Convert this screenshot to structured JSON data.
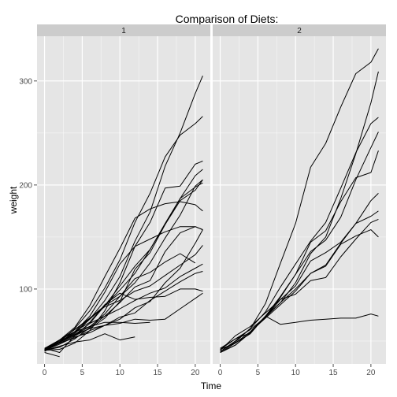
{
  "chart_data": {
    "type": "line",
    "title": "Comparison of Diets:",
    "xlabel": "Time",
    "ylabel": "weight",
    "xlim": [
      -1,
      22
    ],
    "ylim": [
      28,
      343
    ],
    "x_ticks": [
      0,
      5,
      10,
      15,
      20
    ],
    "y_ticks": [
      100,
      200,
      300
    ],
    "grid": true,
    "legend": "none",
    "panel_background": "#e5e5e5",
    "strip_background": "#cccccc",
    "gridline_color": "#ffffff",
    "line_color": "#000000",
    "panels": [
      {
        "label": "1",
        "series": [
          {
            "x": [
              0,
              2,
              4,
              6,
              8,
              10,
              12,
              14,
              16,
              18,
              20,
              21
            ],
            "y": [
              42,
              51,
              59,
              64,
              76,
              93,
              106,
              125,
              149,
              171,
              199,
              205
            ]
          },
          {
            "x": [
              0,
              2,
              4,
              6,
              8,
              10,
              12,
              14,
              16,
              18,
              20,
              21
            ],
            "y": [
              40,
              49,
              58,
              72,
              84,
              103,
              122,
              138,
              162,
              187,
              209,
              215
            ]
          },
          {
            "x": [
              0,
              2,
              4,
              6,
              8,
              10,
              12,
              14,
              16,
              18,
              20,
              21
            ],
            "y": [
              43,
              39,
              55,
              67,
              84,
              99,
              115,
              138,
              163,
              187,
              198,
              202
            ]
          },
          {
            "x": [
              0,
              2,
              4,
              6,
              8,
              10,
              12,
              14,
              16,
              18,
              20,
              21
            ],
            "y": [
              42,
              49,
              56,
              67,
              74,
              87,
              102,
              108,
              136,
              154,
              160,
              157
            ]
          },
          {
            "x": [
              0,
              2,
              4,
              6,
              8,
              10,
              12,
              14,
              16,
              18,
              20,
              21
            ],
            "y": [
              41,
              42,
              48,
              60,
              79,
              106,
              141,
              164,
              197,
              199,
              220,
              223
            ]
          },
          {
            "x": [
              0,
              2,
              4,
              6,
              8,
              10,
              12,
              14,
              16,
              18,
              20,
              21
            ],
            "y": [
              41,
              49,
              59,
              74,
              97,
              124,
              141,
              148,
              155,
              160,
              160,
              157
            ]
          },
          {
            "x": [
              0,
              2,
              4,
              6,
              8,
              10,
              12,
              14,
              16,
              18,
              20,
              21
            ],
            "y": [
              41,
              49,
              57,
              71,
              89,
              112,
              146,
              174,
              218,
              250,
              288,
              305
            ]
          },
          {
            "x": [
              0,
              2,
              4,
              6,
              8,
              10,
              12,
              14,
              16,
              18,
              20
            ],
            "y": [
              42,
              50,
              61,
              71,
              84,
              93,
              110,
              116,
              126,
              134,
              125
            ]
          },
          {
            "x": [
              0,
              2,
              4,
              6,
              8,
              10,
              12,
              14,
              16,
              18,
              20,
              21
            ],
            "y": [
              42,
              51,
              59,
              68,
              85,
              96,
              90,
              92,
              93,
              100,
              100,
              98
            ]
          },
          {
            "x": [
              0,
              2,
              4,
              6,
              8,
              10,
              12,
              14,
              16,
              18,
              20,
              21
            ],
            "y": [
              41,
              44,
              52,
              63,
              74,
              81,
              89,
              96,
              101,
              112,
              120,
              124
            ]
          },
          {
            "x": [
              0,
              2,
              4,
              6,
              8,
              10,
              12,
              14,
              16,
              18,
              20,
              21
            ],
            "y": [
              43,
              51,
              63,
              84,
              112,
              139,
              168,
              177,
              182,
              184,
              181,
              175
            ]
          },
          {
            "x": [
              0,
              2,
              4,
              6,
              8,
              10,
              12,
              14,
              16,
              18,
              20,
              21
            ],
            "y": [
              41,
              49,
              56,
              62,
              72,
              88,
              119,
              135,
              162,
              185,
              195,
              205
            ]
          },
          {
            "x": [
              0,
              2,
              4,
              6,
              8,
              10,
              12,
              14,
              16,
              18,
              20,
              21
            ],
            "y": [
              41,
              48,
              53,
              60,
              65,
              67,
              71,
              70,
              71,
              81,
              91,
              96
            ]
          },
          {
            "x": [
              0,
              2,
              4,
              6,
              8,
              10,
              12,
              14,
              16,
              18,
              20,
              21
            ],
            "y": [
              41,
              49,
              62,
              79,
              101,
              128,
              164,
              192,
              227,
              248,
              259,
              266
            ]
          },
          {
            "x": [
              0,
              2,
              4,
              6,
              8,
              10,
              12,
              14
            ],
            "y": [
              41,
              49,
              56,
              64,
              68,
              68,
              67,
              68
            ]
          },
          {
            "x": [
              0,
              2,
              4,
              6,
              8,
              10,
              12
            ],
            "y": [
              41,
              45,
              49,
              51,
              57,
              51,
              54
            ]
          },
          {
            "x": [
              0,
              2,
              4,
              6,
              8,
              10,
              12,
              14,
              16,
              18,
              20,
              21
            ],
            "y": [
              42,
              51,
              61,
              72,
              83,
              89,
              98,
              103,
              113,
              123,
              133,
              142
            ]
          },
          {
            "x": [
              0,
              2
            ],
            "y": [
              39,
              35
            ]
          },
          {
            "x": [
              0,
              2,
              4,
              6,
              8,
              10,
              12,
              14,
              16,
              18,
              20,
              21
            ],
            "y": [
              43,
              48,
              55,
              62,
              65,
              71,
              82,
              88,
              106,
              120,
              144,
              157
            ]
          },
          {
            "x": [
              0,
              2,
              4,
              6,
              8,
              10,
              12,
              14,
              16,
              18,
              20,
              21
            ],
            "y": [
              41,
              47,
              54,
              58,
              65,
              73,
              77,
              89,
              98,
              107,
              115,
              117
            ]
          }
        ]
      },
      {
        "label": "2",
        "series": [
          {
            "x": [
              0,
              2,
              4,
              6,
              8,
              10,
              12,
              14,
              16,
              18,
              20,
              21
            ],
            "y": [
              40,
              50,
              62,
              86,
              125,
              163,
              217,
              240,
              275,
              307,
              318,
              331
            ]
          },
          {
            "x": [
              0,
              2,
              4,
              6,
              8,
              10,
              12,
              14,
              16,
              18,
              20,
              21
            ],
            "y": [
              41,
              55,
              64,
              77,
              90,
              95,
              108,
              111,
              131,
              148,
              164,
              167
            ]
          },
          {
            "x": [
              0,
              2,
              4,
              6,
              8,
              10,
              12,
              14,
              16,
              18,
              20,
              21
            ],
            "y": [
              43,
              52,
              61,
              73,
              90,
              103,
              127,
              135,
              145,
              163,
              170,
              175
            ]
          },
          {
            "x": [
              0,
              2,
              4,
              6,
              8,
              10,
              12,
              14,
              16,
              18,
              20,
              21
            ],
            "y": [
              42,
              52,
              58,
              74,
              66,
              68,
              70,
              71,
              72,
              72,
              76,
              74
            ]
          },
          {
            "x": [
              0,
              2,
              4,
              6,
              8,
              10,
              12,
              14,
              16,
              18,
              20,
              21
            ],
            "y": [
              40,
              49,
              62,
              78,
              102,
              124,
              146,
              164,
              197,
              231,
              259,
              265
            ]
          },
          {
            "x": [
              0,
              2,
              4,
              6,
              8,
              10,
              12,
              14,
              16,
              18,
              20,
              21
            ],
            "y": [
              42,
              48,
              57,
              74,
              93,
              114,
              136,
              147,
              169,
              205,
              236,
              251
            ]
          },
          {
            "x": [
              0,
              2,
              4,
              6,
              8,
              10,
              12,
              14,
              16,
              18,
              20,
              21
            ],
            "y": [
              39,
              46,
              58,
              73,
              87,
              100,
              115,
              123,
              144,
              163,
              185,
              192
            ]
          },
          {
            "x": [
              0,
              2,
              4,
              6,
              8,
              10,
              12,
              14,
              16,
              18,
              20,
              21
            ],
            "y": [
              39,
              46,
              58,
              73,
              92,
              114,
              145,
              156,
              184,
              207,
              212,
              233
            ]
          },
          {
            "x": [
              0,
              2,
              4,
              6,
              8,
              10,
              12,
              14,
              16,
              18,
              20,
              21
            ],
            "y": [
              39,
              48,
              59,
              74,
              87,
              106,
              134,
              150,
              187,
              230,
              279,
              309
            ]
          },
          {
            "x": [
              0,
              2,
              4,
              6,
              8,
              10,
              12,
              14,
              16,
              18,
              20,
              21
            ],
            "y": [
              42,
              48,
              59,
              72,
              85,
              98,
              115,
              122,
              143,
              151,
              157,
              150
            ]
          }
        ]
      }
    ]
  }
}
